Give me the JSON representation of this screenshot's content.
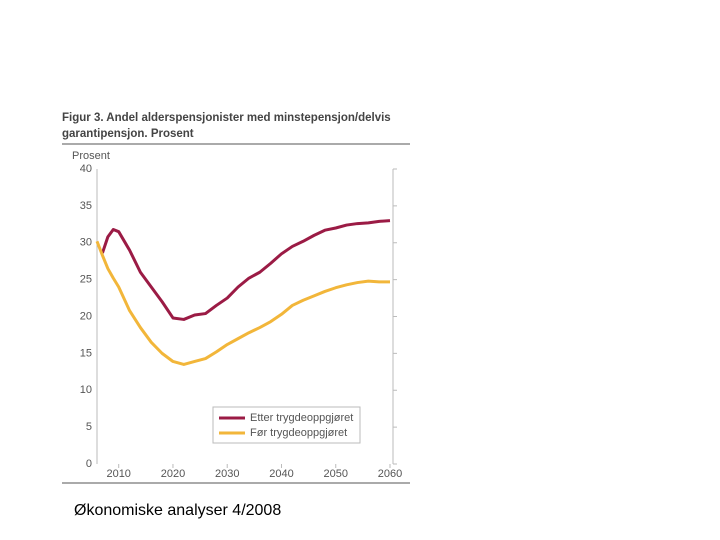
{
  "chart_data": {
    "type": "line",
    "title": "Figur 3. Andel alderspensjonister med minstepensjon/delvis garantipensjon. Prosent",
    "ylabel": "Prosent",
    "x": [
      2006,
      2007,
      2008,
      2009,
      2010,
      2012,
      2014,
      2016,
      2018,
      2020,
      2022,
      2024,
      2026,
      2028,
      2030,
      2032,
      2034,
      2036,
      2038,
      2040,
      2042,
      2044,
      2046,
      2048,
      2050,
      2052,
      2054,
      2056,
      2058,
      2060
    ],
    "series": [
      {
        "name": "Etter trygdeoppgjøret",
        "color": "#9b1b45",
        "values": [
          null,
          28.6,
          30.8,
          31.8,
          31.5,
          29,
          26,
          24,
          22,
          19.8,
          19.6,
          20.2,
          20.4,
          21.5,
          22.5,
          24,
          25.2,
          26,
          27.2,
          28.5,
          29.5,
          30.2,
          31,
          31.7,
          32,
          32.4,
          32.6,
          32.7,
          32.9,
          33
        ]
      },
      {
        "name": "Før trygdeoppgjøret",
        "color": "#f2b63a",
        "values": [
          30.2,
          28.3,
          26.5,
          25.2,
          24,
          20.8,
          18.5,
          16.5,
          15,
          13.9,
          13.5,
          13.9,
          14.3,
          15.2,
          16.2,
          17,
          17.8,
          18.5,
          19.3,
          20.3,
          21.5,
          22.2,
          22.8,
          23.4,
          23.9,
          24.3,
          24.6,
          24.8,
          24.7,
          24.7
        ]
      }
    ],
    "xlim": [
      2006,
      2060
    ],
    "xticks": [
      2010,
      2020,
      2030,
      2040,
      2050,
      2060
    ],
    "ylim": [
      0,
      40
    ],
    "yticks": [
      0,
      5,
      10,
      15,
      20,
      25,
      30,
      35,
      40
    ],
    "legend": "lower center",
    "caption": "Økonomiske analyser 4/2008"
  }
}
